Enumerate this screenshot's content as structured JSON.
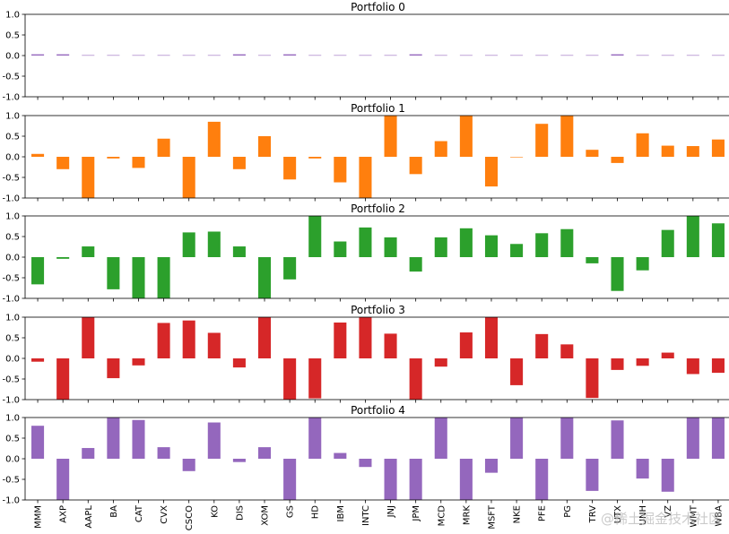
{
  "chart_data": {
    "type": "bar",
    "layout": "stacked-subplots",
    "categories": [
      "MMM",
      "AXP",
      "AAPL",
      "BA",
      "CAT",
      "CVX",
      "CSCO",
      "KO",
      "DIS",
      "XOM",
      "GS",
      "HD",
      "IBM",
      "INTC",
      "JNJ",
      "JPM",
      "MCD",
      "MRK",
      "MSFT",
      "NKE",
      "PFE",
      "PG",
      "TRV",
      "UTX",
      "UNH",
      "VZ",
      "WMT",
      "WBA"
    ],
    "ylim": [
      -1,
      1
    ],
    "yticks": [
      "1.0",
      "0.5",
      "0.0",
      "-0.5",
      "-1.0"
    ],
    "grid": false,
    "panels": [
      {
        "title": "Portfolio 0",
        "color": "#9467bd",
        "values": [
          0.03,
          0.03,
          0.01,
          0.01,
          0.01,
          0.01,
          0.01,
          0.01,
          0.03,
          0.01,
          0.03,
          0.01,
          0.01,
          0.01,
          0.01,
          0.03,
          0.01,
          0.01,
          0.01,
          0.01,
          0.01,
          0.01,
          0.01,
          0.03,
          0.01,
          0.01,
          0.01,
          0.01
        ]
      },
      {
        "title": "Portfolio 1",
        "color": "#ff7f0e",
        "values": [
          0.07,
          -0.3,
          -1.0,
          -0.04,
          -0.27,
          0.44,
          -1.0,
          0.85,
          -0.3,
          0.5,
          -0.55,
          -0.04,
          -0.62,
          -1.0,
          1.0,
          -0.42,
          0.38,
          1.0,
          -0.72,
          0.0,
          0.8,
          1.0,
          0.17,
          -0.15,
          0.57,
          0.27,
          0.26,
          0.42
        ]
      },
      {
        "title": "Portfolio 2",
        "color": "#2ca02c",
        "values": [
          -0.66,
          -0.04,
          0.26,
          -0.78,
          -1.0,
          -1.0,
          0.6,
          0.62,
          0.26,
          -1.0,
          -0.54,
          1.0,
          0.38,
          0.72,
          0.48,
          -0.35,
          0.48,
          0.7,
          0.53,
          0.32,
          0.58,
          0.68,
          -0.15,
          -0.82,
          -0.32,
          0.66,
          1.0,
          0.82
        ]
      },
      {
        "title": "Portfolio 3",
        "color": "#d62728",
        "values": [
          -0.08,
          -1.0,
          1.0,
          -0.48,
          -0.17,
          0.86,
          0.92,
          0.62,
          -0.22,
          1.0,
          -1.0,
          -0.97,
          0.87,
          1.0,
          0.6,
          -1.0,
          -0.2,
          0.63,
          1.0,
          -0.65,
          0.59,
          0.34,
          -0.96,
          -0.28,
          -0.18,
          0.14,
          -0.38,
          -0.35
        ]
      },
      {
        "title": "Portfolio 4",
        "color": "#9467bd",
        "values": [
          0.8,
          -1.0,
          0.26,
          1.0,
          0.94,
          0.28,
          -0.3,
          0.88,
          -0.08,
          0.28,
          -1.0,
          1.0,
          0.14,
          -0.2,
          -1.0,
          -1.0,
          1.0,
          -1.0,
          -0.34,
          1.0,
          -1.0,
          1.0,
          -0.78,
          0.93,
          -0.48,
          -0.8,
          1.0,
          1.0
        ]
      }
    ]
  },
  "watermark": "@稀土掘金技术社区"
}
